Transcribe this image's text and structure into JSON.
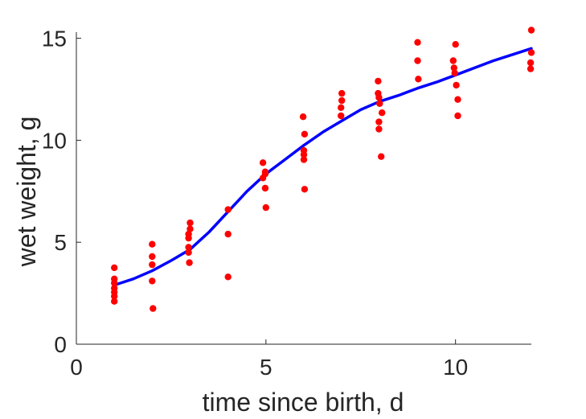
{
  "chart_data": {
    "type": "scatter",
    "title": "",
    "xlabel": "time since birth, d",
    "ylabel": "wet weight, g",
    "xlim": [
      0,
      12
    ],
    "ylim": [
      0,
      15.3
    ],
    "xticks": [
      0,
      5,
      10
    ],
    "yticks": [
      0,
      5,
      10,
      15
    ],
    "grid": false,
    "legend": "none",
    "series": [
      {
        "kind": "points",
        "color": "#ff0000",
        "points": [
          [
            1,
            3.75
          ],
          [
            1,
            3.2
          ],
          [
            1,
            3.0
          ],
          [
            1,
            2.75
          ],
          [
            1,
            2.55
          ],
          [
            1,
            2.35
          ],
          [
            1,
            2.1
          ],
          [
            2,
            4.9
          ],
          [
            2,
            4.3
          ],
          [
            2,
            3.9
          ],
          [
            2,
            3.1
          ],
          [
            2.02,
            1.75
          ],
          [
            3,
            5.95
          ],
          [
            3,
            5.65
          ],
          [
            2.96,
            5.4
          ],
          [
            2.96,
            5.2
          ],
          [
            2.96,
            4.75
          ],
          [
            2.96,
            4.5
          ],
          [
            2.98,
            4.0
          ],
          [
            4,
            6.6
          ],
          [
            4,
            5.4
          ],
          [
            4,
            3.3
          ],
          [
            4.92,
            8.9
          ],
          [
            4.98,
            8.45
          ],
          [
            4.98,
            8.35
          ],
          [
            4.92,
            8.15
          ],
          [
            4.98,
            7.65
          ],
          [
            5,
            6.7
          ],
          [
            5.98,
            11.15
          ],
          [
            6.02,
            10.3
          ],
          [
            6,
            9.5
          ],
          [
            6,
            9.3
          ],
          [
            6,
            9.05
          ],
          [
            6.02,
            7.6
          ],
          [
            7,
            12.3
          ],
          [
            7,
            11.95
          ],
          [
            6.98,
            11.6
          ],
          [
            6.98,
            11.2
          ],
          [
            7.96,
            12.9
          ],
          [
            7.96,
            12.3
          ],
          [
            7.98,
            12.1
          ],
          [
            8,
            11.8
          ],
          [
            8.06,
            11.35
          ],
          [
            7.98,
            10.9
          ],
          [
            7.98,
            10.55
          ],
          [
            8.04,
            9.2
          ],
          [
            9,
            14.8
          ],
          [
            9,
            13.9
          ],
          [
            9.02,
            13.0
          ],
          [
            10,
            14.7
          ],
          [
            9.94,
            13.9
          ],
          [
            9.96,
            13.55
          ],
          [
            9.98,
            13.3
          ],
          [
            10.02,
            12.7
          ],
          [
            10.06,
            12.0
          ],
          [
            10.06,
            11.2
          ],
          [
            12,
            15.4
          ],
          [
            12,
            14.3
          ],
          [
            11.98,
            13.8
          ],
          [
            11.98,
            13.5
          ]
        ]
      },
      {
        "kind": "line",
        "color": "#0000ff",
        "points": [
          [
            1,
            2.9
          ],
          [
            1.5,
            3.2
          ],
          [
            2,
            3.6
          ],
          [
            2.5,
            4.1
          ],
          [
            3,
            4.65
          ],
          [
            3.5,
            5.5
          ],
          [
            4,
            6.5
          ],
          [
            4.5,
            7.5
          ],
          [
            5,
            8.35
          ],
          [
            5.5,
            9.05
          ],
          [
            6,
            9.75
          ],
          [
            6.5,
            10.4
          ],
          [
            7,
            10.95
          ],
          [
            7.5,
            11.5
          ],
          [
            8,
            11.9
          ],
          [
            8.5,
            12.2
          ],
          [
            9,
            12.55
          ],
          [
            9.5,
            12.85
          ],
          [
            10,
            13.2
          ],
          [
            10.5,
            13.55
          ],
          [
            11,
            13.9
          ],
          [
            11.5,
            14.2
          ],
          [
            12,
            14.5
          ]
        ]
      }
    ]
  }
}
